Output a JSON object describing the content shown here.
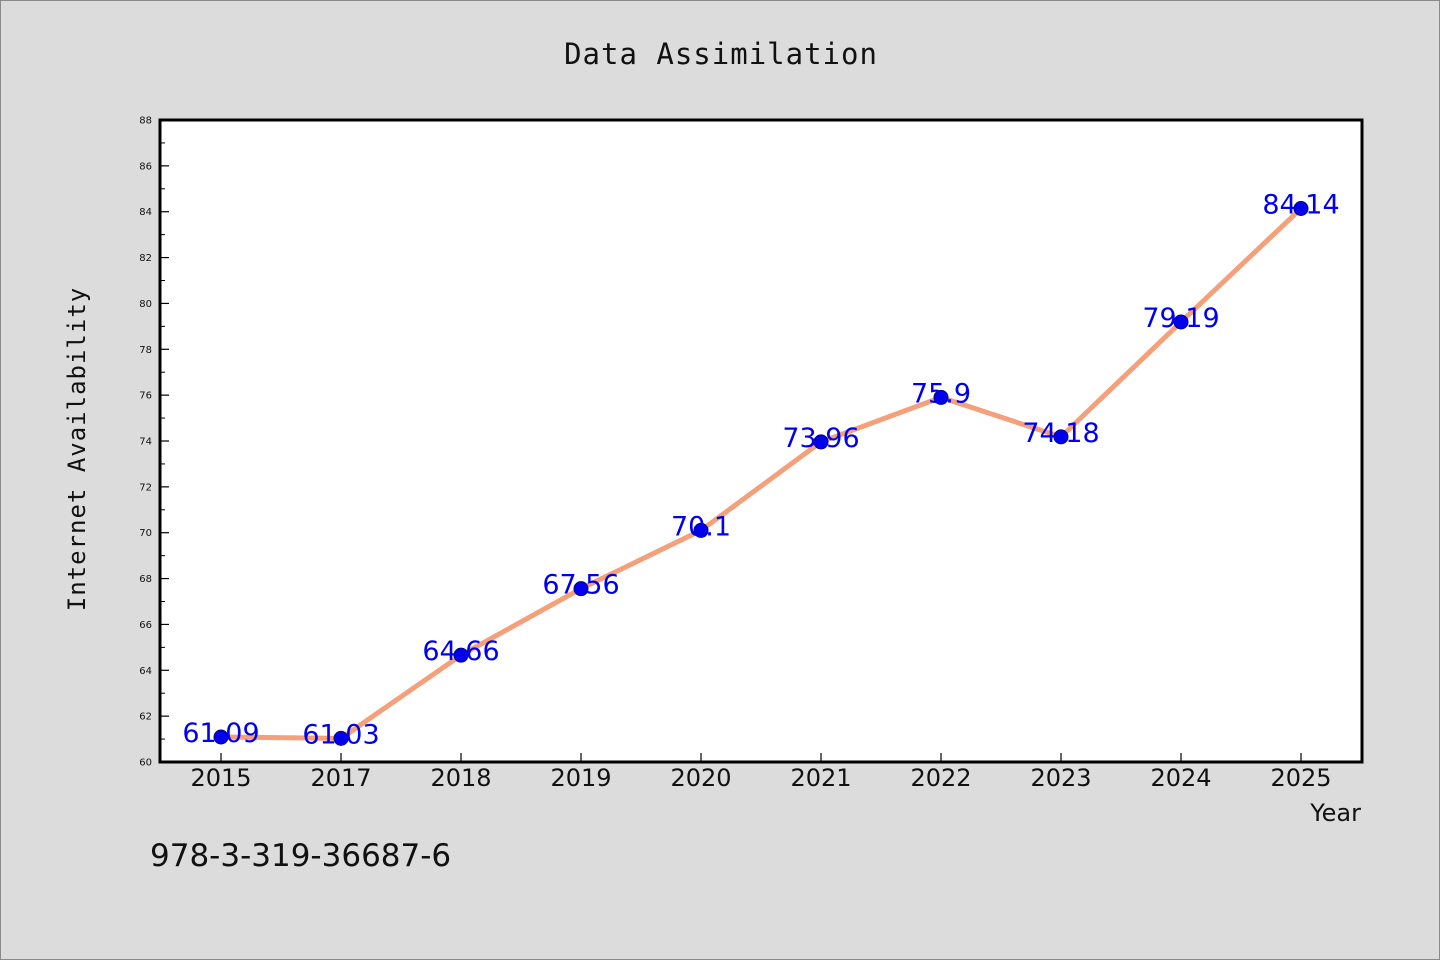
{
  "chart_data": {
    "type": "line",
    "title": "Data Assimilation",
    "xlabel": "Year",
    "ylabel": "Internet Availability",
    "categories": [
      "2015",
      "2017",
      "2018",
      "2019",
      "2020",
      "2021",
      "2022",
      "2023",
      "2024",
      "2025"
    ],
    "series": [
      {
        "values": [
          61.09,
          61.03,
          64.66,
          67.56,
          70.1,
          73.96,
          75.9,
          74.18,
          79.19,
          84.14
        ],
        "labels": [
          "61.09",
          "61.03",
          "64.66",
          "67.56",
          "70.1",
          "73.96",
          "75.9",
          "74.18",
          "79.19",
          "84.14"
        ]
      }
    ],
    "ylim": [
      60,
      88
    ],
    "yticks": [
      "60",
      "62",
      "64",
      "66",
      "68",
      "70",
      "72",
      "74",
      "76",
      "78",
      "80",
      "82",
      "84",
      "86",
      "88"
    ],
    "grid": false,
    "legend": "none",
    "colors": {
      "line": "#f4a07a",
      "marker": "#0000ee",
      "data_label": "#0000ee",
      "background": "#dcdcdc",
      "plot_background": "#ffffff"
    }
  },
  "footer_text": "978-3-319-36687-6"
}
